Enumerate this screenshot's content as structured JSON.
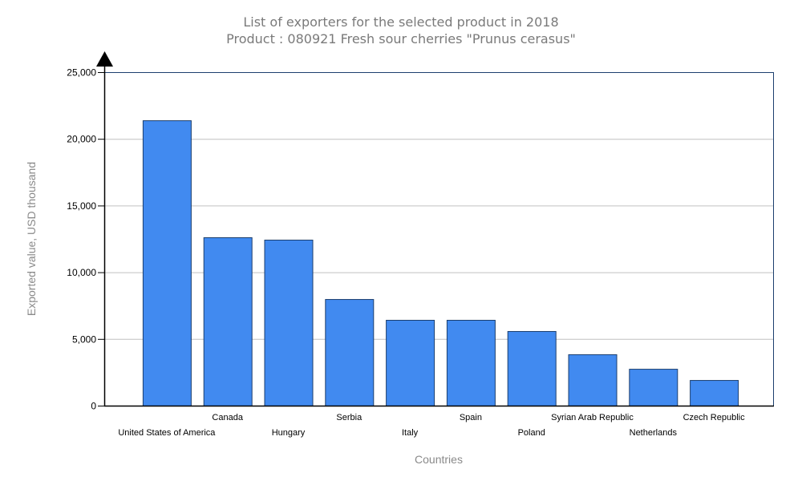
{
  "chart_data": {
    "type": "bar",
    "title": "List of exporters for the selected product in 2018",
    "subtitle": "Product : 080921 Fresh sour cherries \"Prunus cerasus\"",
    "xlabel": "Countries",
    "ylabel": "Exported value, USD thousand",
    "ylim": [
      0,
      25000
    ],
    "yticks": [
      0,
      5000,
      10000,
      15000,
      20000,
      25000
    ],
    "ytick_labels": [
      "0",
      "5,000",
      "10,000",
      "15,000",
      "20,000",
      "25,000"
    ],
    "grid": true,
    "categories": [
      "United States of America",
      "Canada",
      "Hungary",
      "Serbia",
      "Italy",
      "Spain",
      "Poland",
      "Syrian Arab Republic",
      "Netherlands",
      "Czech Republic"
    ],
    "values": [
      21390,
      12620,
      12440,
      7990,
      6430,
      6430,
      5590,
      3850,
      2760,
      1920
    ],
    "colors": {
      "bar": "#418af0",
      "bar_border": "#1c3f6e",
      "grid": "#c0c0c0",
      "frame": "#1c3f6e"
    }
  }
}
